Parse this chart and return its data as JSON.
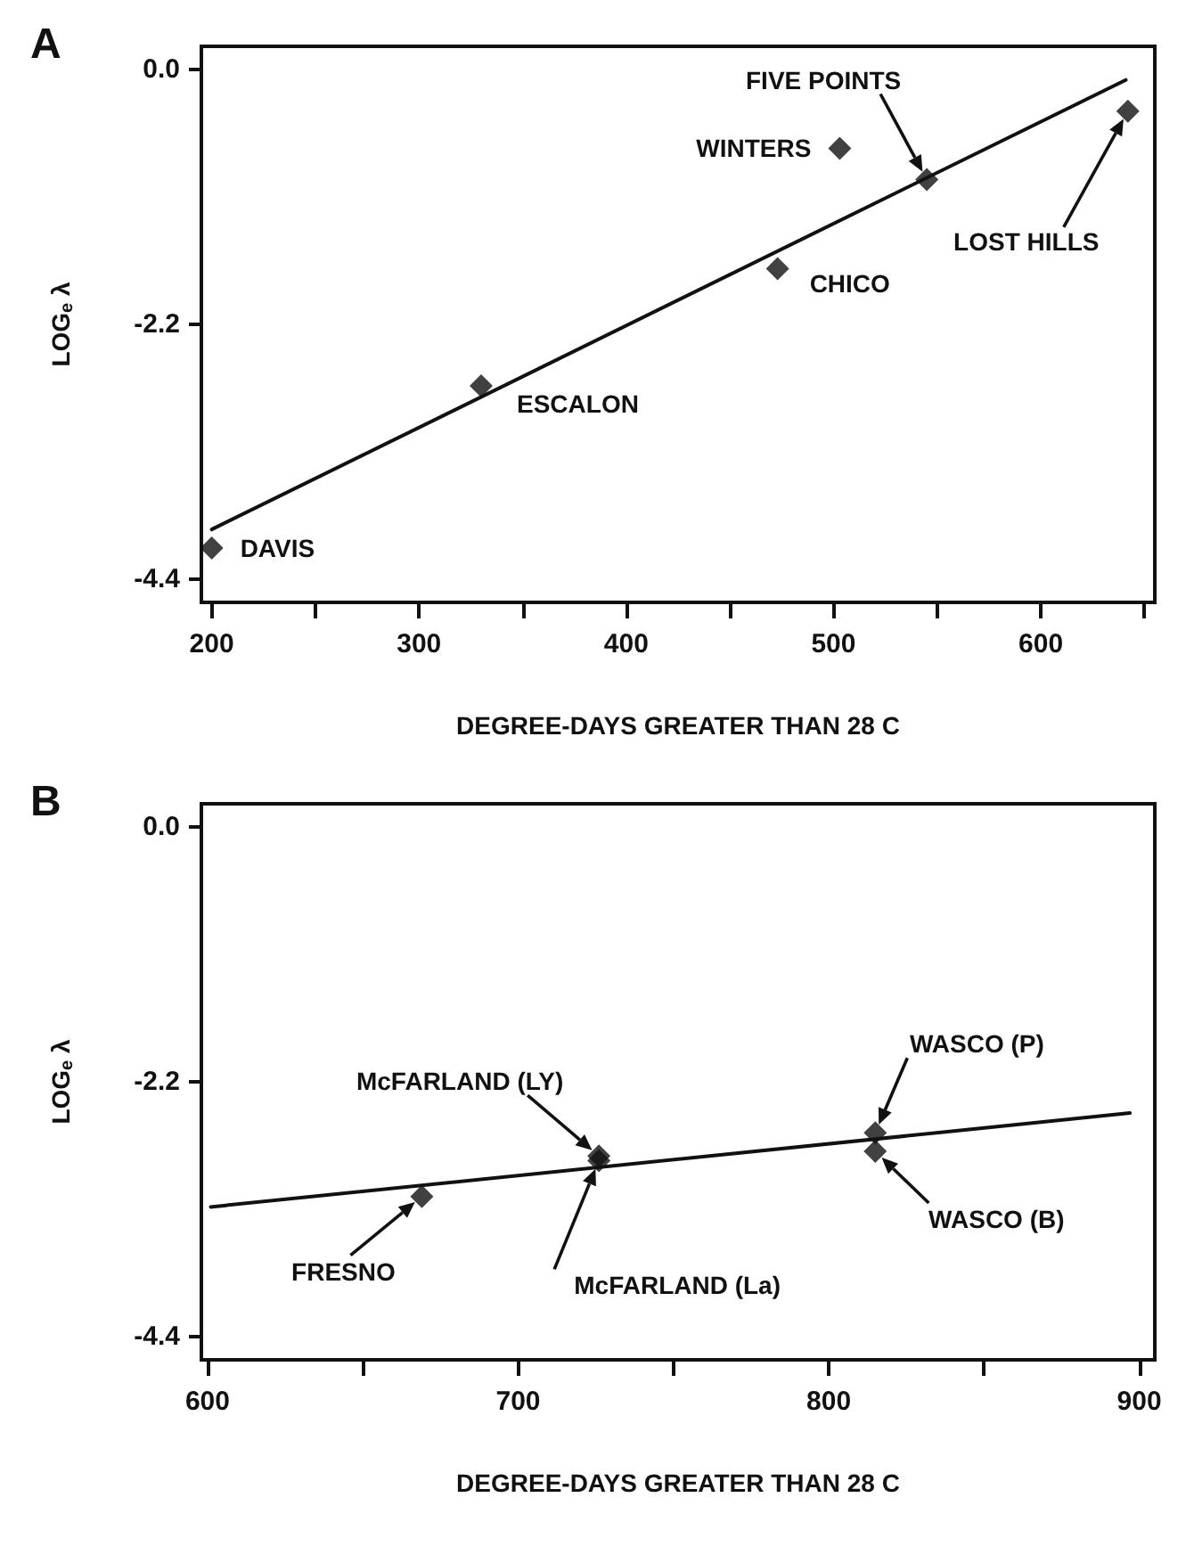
{
  "chart_data": [
    {
      "type": "scatter",
      "title": "A",
      "xlabel": "DEGREE-DAYS GREATER THAN 28 C",
      "ylabel": "LOG$_{e}$ λ",
      "marker": "diamond",
      "grid": false,
      "xlim": [
        195,
        655
      ],
      "ylim": [
        -4.6,
        0.2
      ],
      "xticks": [
        200,
        {
          "value": 250,
          "label": null
        },
        300,
        {
          "value": 350,
          "label": null
        },
        400,
        {
          "value": 450,
          "label": null
        },
        500,
        {
          "value": 550,
          "label": null
        },
        600,
        {
          "value": 650,
          "label": null
        }
      ],
      "yticks": [
        {
          "value": 0,
          "label": "0.0"
        },
        {
          "value": -2.2,
          "label": "-2.2"
        },
        {
          "value": -4.4,
          "label": "-4.4"
        }
      ],
      "series": [
        {
          "type": "scatter",
          "color": "#111111",
          "x": [
            200,
            330,
            473,
            503,
            545,
            642
          ],
          "values": [
            -4.13,
            -2.73,
            -1.72,
            -0.68,
            -0.95,
            -0.36
          ]
        },
        {
          "type": "line",
          "color": "#111111",
          "line_style": "solid",
          "marker": "none",
          "x": [
            200,
            641
          ],
          "values": [
            -3.97,
            -0.09
          ]
        }
      ],
      "annotations": [
        {
          "text": "DAVIS",
          "x": 200,
          "y": -4.13
        },
        {
          "text": "ESCALON",
          "x": 330,
          "y": -2.73
        },
        {
          "text": "CHICO",
          "x": 473,
          "y": -1.72
        },
        {
          "text": "WINTERS",
          "x": 503,
          "y": -0.68
        },
        "FIVE POINTS",
        "LOST HILLS"
      ]
    },
    {
      "type": "scatter",
      "title": "B",
      "xlabel": "DEGREE-DAYS GREATER THAN 28 C",
      "ylabel": "LOG$_{e}$ λ",
      "marker": "diamond",
      "grid": false,
      "xlim": [
        598,
        905
      ],
      "ylim": [
        -4.6,
        0.2
      ],
      "xticks": [
        600,
        {
          "value": 650,
          "label": null
        },
        700,
        {
          "value": 750,
          "label": null
        },
        800,
        {
          "value": 850,
          "label": null
        },
        900
      ],
      "yticks": [
        {
          "value": 0,
          "label": "0.0"
        },
        {
          "value": -2.2,
          "label": "-2.2"
        },
        {
          "value": -4.4,
          "label": "-4.4"
        }
      ],
      "series": [
        {
          "type": "scatter",
          "color": "#111111",
          "x": [
            669,
            726,
            726,
            815,
            815
          ],
          "values": [
            -3.19,
            -2.84,
            -2.88,
            -2.64,
            -2.8
          ]
        },
        {
          "type": "line",
          "color": "#111111",
          "line_style": "solid",
          "marker": "none",
          "x": [
            601,
            897
          ],
          "values": [
            -3.28,
            -2.47
          ]
        }
      ],
      "annotations": [
        {
          "text": "FRESNO",
          "x": 669,
          "y": -3.19
        },
        {
          "text": "McFARLAND (LY)",
          "x": 726,
          "y": -2.84
        },
        "McFARLAND (La)",
        "WASCO (P)",
        "WASCO (B)"
      ]
    }
  ]
}
